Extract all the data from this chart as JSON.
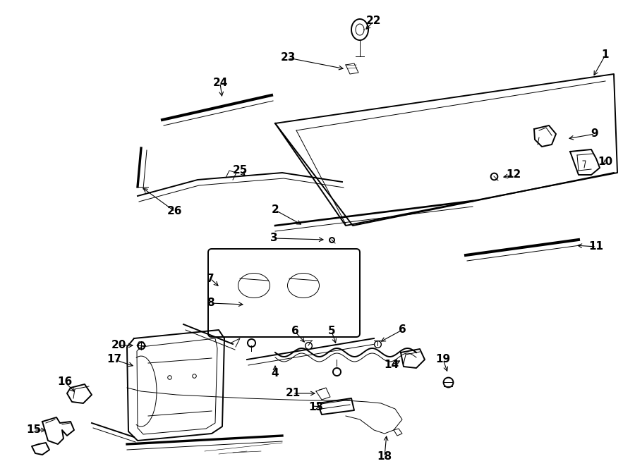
{
  "bg_color": "#ffffff",
  "line_color": "#000000",
  "figsize": [
    9.0,
    6.61
  ],
  "dpi": 100,
  "lw_main": 1.4,
  "lw_med": 1.0,
  "lw_thin": 0.7,
  "label_fontsize": 11,
  "arrow_fontsize": 8
}
